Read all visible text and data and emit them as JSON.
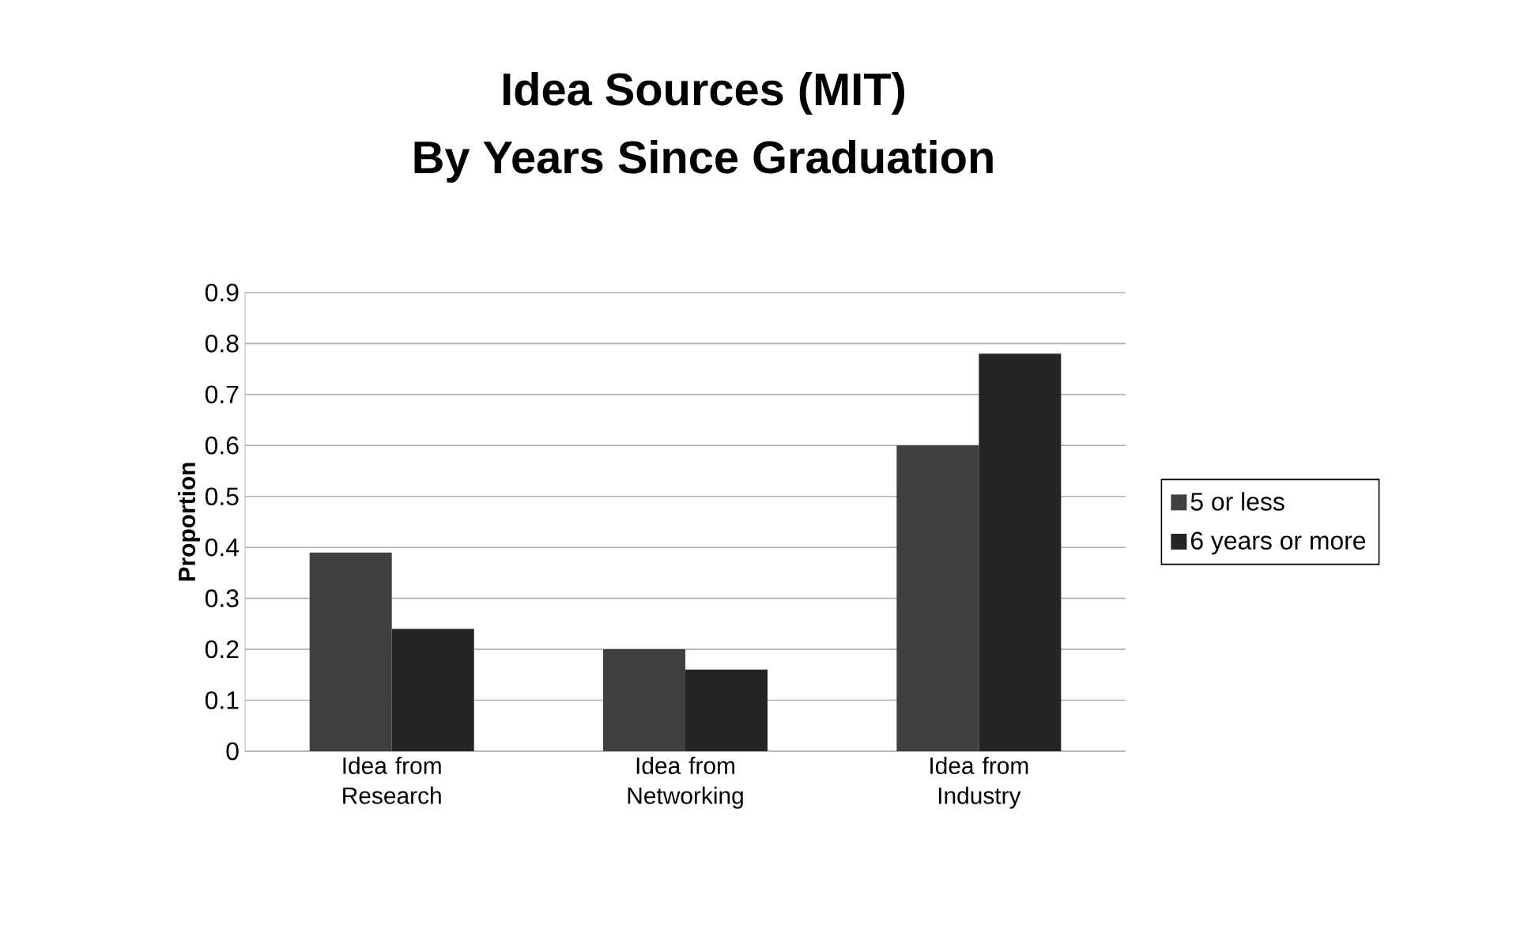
{
  "chart_data": {
    "type": "bar",
    "title": "Idea Sources (MIT)",
    "subtitle": "By Years Since Graduation",
    "ylabel": "Proportion",
    "categories": [
      "Idea from Research",
      "Idea from Networking",
      "Idea from Industry"
    ],
    "series": [
      {
        "name": "5 or less",
        "color": "#404040",
        "values": [
          0.39,
          0.2,
          0.6
        ]
      },
      {
        "name": "6 years or more",
        "color": "#252525",
        "values": [
          0.24,
          0.16,
          0.78
        ]
      }
    ],
    "ylim": [
      0,
      0.9
    ],
    "yticks": [
      0,
      0.1,
      0.2,
      0.3,
      0.4,
      0.5,
      0.6,
      0.7,
      0.8,
      0.9
    ],
    "grid": "y",
    "legend": "right"
  }
}
